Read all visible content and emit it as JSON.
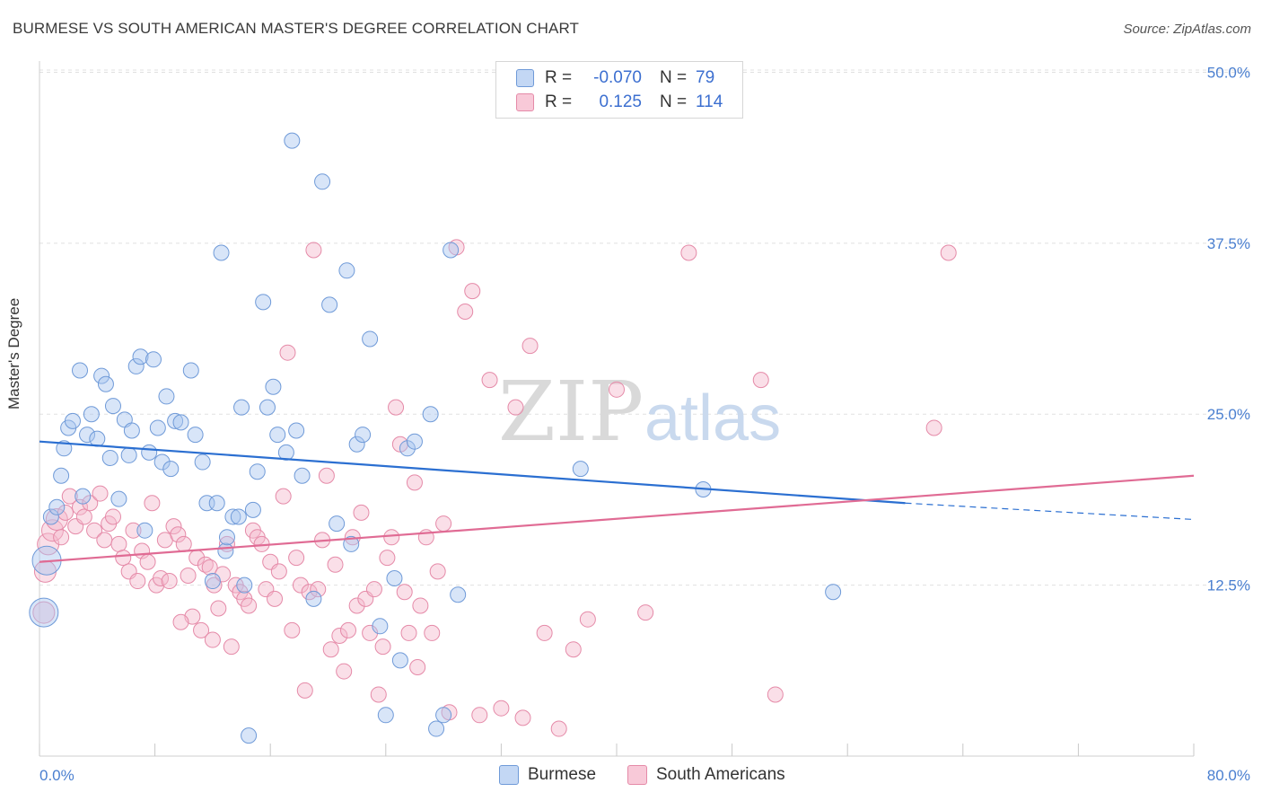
{
  "title": "BURMESE VS SOUTH AMERICAN MASTER'S DEGREE CORRELATION CHART",
  "source": "Source: ZipAtlas.com",
  "watermark": {
    "zip": "ZIP",
    "atlas": "atlas"
  },
  "legend": {
    "burmese": {
      "r_label": "R =",
      "r_value": "-0.070",
      "n_label": "N =",
      "n_value": "79"
    },
    "south_americans": {
      "r_label": "R =",
      "r_value": "0.125",
      "n_label": "N =",
      "n_value": "114"
    }
  },
  "colors": {
    "burmese_fill": "#a9c6f0",
    "burmese_stroke": "#6f9ad8",
    "burmese_line": "#2b6fd1",
    "sa_fill": "#f5b8cb",
    "sa_stroke": "#e58aa8",
    "sa_line": "#e06b94",
    "tick_label": "#4a7fd0",
    "grid": "#e0e0e0"
  },
  "chart_data": {
    "type": "scatter",
    "title": "BURMESE VS SOUTH AMERICAN MASTER'S DEGREE CORRELATION CHART",
    "xlabel": "",
    "ylabel": "Master's Degree",
    "xlim": [
      0,
      80
    ],
    "ylim": [
      0,
      52
    ],
    "x_tick_labels": [
      "0.0%",
      "80.0%"
    ],
    "y_ticks": [
      12.5,
      25.0,
      37.5,
      50.0
    ],
    "y_tick_labels": [
      "12.5%",
      "25.0%",
      "37.5%",
      "50.0%"
    ],
    "grid": true,
    "legend_position": "bottom",
    "series": [
      {
        "name": "Burmese",
        "trend": {
          "x0": 0,
          "y0": 23.0,
          "x1": 60,
          "y1": 18.5,
          "dash_to_x": 80,
          "dash_to_y": 17.3
        },
        "points": [
          [
            0.3,
            10.5
          ],
          [
            0.5,
            14.3
          ],
          [
            0.8,
            17.5
          ],
          [
            1.2,
            18.2
          ],
          [
            1.5,
            20.5
          ],
          [
            1.7,
            22.5
          ],
          [
            2.0,
            24.0
          ],
          [
            2.3,
            24.5
          ],
          [
            2.8,
            28.2
          ],
          [
            3.0,
            19.0
          ],
          [
            3.3,
            23.5
          ],
          [
            3.6,
            25.0
          ],
          [
            4.0,
            23.2
          ],
          [
            4.3,
            27.8
          ],
          [
            4.6,
            27.2
          ],
          [
            4.9,
            21.8
          ],
          [
            5.1,
            25.6
          ],
          [
            5.5,
            18.8
          ],
          [
            5.9,
            24.6
          ],
          [
            6.2,
            22.0
          ],
          [
            6.4,
            23.8
          ],
          [
            6.7,
            28.5
          ],
          [
            7.0,
            29.2
          ],
          [
            7.3,
            16.5
          ],
          [
            7.6,
            22.2
          ],
          [
            7.9,
            29.0
          ],
          [
            8.2,
            24.0
          ],
          [
            8.5,
            21.5
          ],
          [
            8.8,
            26.3
          ],
          [
            9.1,
            21.0
          ],
          [
            9.4,
            24.5
          ],
          [
            9.8,
            24.4
          ],
          [
            10.5,
            28.2
          ],
          [
            10.8,
            23.5
          ],
          [
            11.3,
            21.5
          ],
          [
            11.6,
            18.5
          ],
          [
            12.0,
            12.8
          ],
          [
            12.3,
            18.5
          ],
          [
            12.6,
            36.8
          ],
          [
            12.9,
            15.0
          ],
          [
            13.4,
            17.5
          ],
          [
            13.8,
            17.5
          ],
          [
            14.0,
            25.5
          ],
          [
            14.2,
            12.5
          ],
          [
            14.5,
            1.5
          ],
          [
            14.8,
            18.0
          ],
          [
            15.1,
            20.8
          ],
          [
            15.5,
            33.2
          ],
          [
            15.8,
            25.5
          ],
          [
            16.2,
            27.0
          ],
          [
            16.5,
            23.5
          ],
          [
            17.1,
            22.2
          ],
          [
            17.5,
            45.0
          ],
          [
            17.8,
            23.8
          ],
          [
            18.2,
            20.5
          ],
          [
            19.0,
            11.5
          ],
          [
            19.6,
            42.0
          ],
          [
            20.1,
            33.0
          ],
          [
            20.6,
            17.0
          ],
          [
            21.3,
            35.5
          ],
          [
            21.6,
            15.5
          ],
          [
            22.0,
            22.8
          ],
          [
            22.4,
            23.5
          ],
          [
            22.9,
            30.5
          ],
          [
            23.6,
            9.5
          ],
          [
            24.0,
            3.0
          ],
          [
            24.6,
            13.0
          ],
          [
            25.0,
            7.0
          ],
          [
            25.5,
            22.5
          ],
          [
            26.0,
            23.0
          ],
          [
            27.1,
            25.0
          ],
          [
            28.0,
            3.0
          ],
          [
            28.5,
            37.0
          ],
          [
            29.0,
            11.8
          ],
          [
            37.5,
            21.0
          ],
          [
            46.0,
            19.5
          ],
          [
            55.0,
            12.0
          ],
          [
            27.5,
            2.0
          ],
          [
            13.0,
            16.0
          ]
        ]
      },
      {
        "name": "South Americans",
        "trend": {
          "x0": 0,
          "y0": 14.2,
          "x1": 80,
          "y1": 20.5
        },
        "points": [
          [
            0.3,
            10.5
          ],
          [
            0.4,
            13.5
          ],
          [
            0.6,
            15.5
          ],
          [
            0.9,
            16.5
          ],
          [
            1.2,
            17.3
          ],
          [
            1.5,
            16.0
          ],
          [
            1.8,
            17.8
          ],
          [
            2.1,
            19.0
          ],
          [
            2.5,
            16.8
          ],
          [
            2.8,
            18.2
          ],
          [
            3.1,
            17.5
          ],
          [
            3.5,
            18.5
          ],
          [
            3.8,
            16.5
          ],
          [
            4.2,
            19.2
          ],
          [
            4.5,
            15.8
          ],
          [
            4.8,
            17.0
          ],
          [
            5.1,
            17.5
          ],
          [
            5.5,
            15.5
          ],
          [
            5.8,
            14.5
          ],
          [
            6.2,
            13.5
          ],
          [
            6.5,
            16.5
          ],
          [
            6.8,
            12.8
          ],
          [
            7.1,
            15.0
          ],
          [
            7.5,
            14.2
          ],
          [
            7.8,
            18.5
          ],
          [
            8.1,
            12.5
          ],
          [
            8.4,
            13.0
          ],
          [
            8.7,
            15.8
          ],
          [
            9.0,
            12.8
          ],
          [
            9.3,
            16.8
          ],
          [
            9.6,
            16.2
          ],
          [
            10.0,
            15.5
          ],
          [
            10.3,
            13.2
          ],
          [
            10.6,
            10.2
          ],
          [
            10.9,
            14.5
          ],
          [
            11.2,
            9.2
          ],
          [
            11.5,
            14.0
          ],
          [
            11.8,
            13.8
          ],
          [
            12.1,
            12.5
          ],
          [
            12.4,
            10.8
          ],
          [
            12.7,
            13.3
          ],
          [
            13.0,
            15.5
          ],
          [
            13.3,
            8.0
          ],
          [
            13.6,
            12.5
          ],
          [
            13.9,
            12.0
          ],
          [
            14.2,
            11.5
          ],
          [
            14.5,
            11.0
          ],
          [
            14.8,
            16.5
          ],
          [
            15.1,
            16.0
          ],
          [
            15.4,
            15.5
          ],
          [
            15.7,
            12.2
          ],
          [
            16.0,
            14.2
          ],
          [
            16.3,
            11.5
          ],
          [
            16.6,
            13.5
          ],
          [
            16.9,
            19.0
          ],
          [
            17.2,
            29.5
          ],
          [
            17.5,
            9.2
          ],
          [
            17.8,
            14.5
          ],
          [
            18.1,
            12.5
          ],
          [
            18.4,
            4.8
          ],
          [
            18.7,
            12.0
          ],
          [
            19.0,
            37.0
          ],
          [
            19.3,
            12.2
          ],
          [
            19.6,
            15.8
          ],
          [
            19.9,
            20.5
          ],
          [
            20.2,
            7.8
          ],
          [
            20.5,
            14.0
          ],
          [
            20.8,
            8.8
          ],
          [
            21.1,
            6.2
          ],
          [
            21.4,
            9.2
          ],
          [
            21.7,
            16.0
          ],
          [
            22.0,
            11.0
          ],
          [
            22.3,
            17.8
          ],
          [
            22.6,
            11.5
          ],
          [
            22.9,
            9.0
          ],
          [
            23.2,
            12.2
          ],
          [
            23.5,
            4.5
          ],
          [
            23.8,
            8.0
          ],
          [
            24.1,
            14.5
          ],
          [
            24.4,
            16.0
          ],
          [
            24.7,
            25.5
          ],
          [
            25.0,
            22.8
          ],
          [
            25.3,
            12.0
          ],
          [
            25.6,
            9.0
          ],
          [
            26.0,
            20.0
          ],
          [
            26.4,
            11.0
          ],
          [
            26.8,
            16.0
          ],
          [
            27.2,
            9.0
          ],
          [
            27.6,
            13.5
          ],
          [
            28.0,
            17.0
          ],
          [
            28.4,
            3.2
          ],
          [
            28.9,
            37.2
          ],
          [
            29.5,
            32.5
          ],
          [
            30.0,
            34.0
          ],
          [
            30.5,
            3.0
          ],
          [
            31.2,
            27.5
          ],
          [
            32.0,
            3.5
          ],
          [
            33.0,
            25.5
          ],
          [
            34.0,
            30.0
          ],
          [
            35.0,
            9.0
          ],
          [
            36.0,
            2.0
          ],
          [
            37.0,
            7.8
          ],
          [
            38.0,
            10.0
          ],
          [
            40.0,
            26.8
          ],
          [
            42.0,
            10.5
          ],
          [
            45.0,
            36.8
          ],
          [
            50.0,
            27.5
          ],
          [
            51.0,
            4.5
          ],
          [
            62.0,
            24.0
          ],
          [
            63.0,
            36.8
          ],
          [
            12.0,
            8.5
          ],
          [
            26.2,
            6.5
          ],
          [
            33.5,
            2.8
          ],
          [
            9.8,
            9.8
          ]
        ]
      }
    ]
  }
}
